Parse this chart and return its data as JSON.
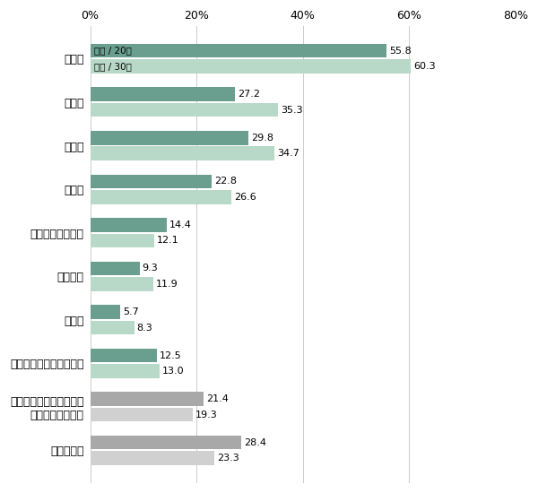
{
  "categories": [
    "忘年会",
    "送別会",
    "歓迎会",
    "新年会",
    "達成会、打ち上げ",
    "景気払い",
    "決起会",
    "その他の定期的な飲み会",
    "不定期で、これといった\n理由のない飲み会",
    "どれもない"
  ],
  "values_20": [
    55.8,
    27.2,
    29.8,
    22.8,
    14.4,
    9.3,
    5.7,
    12.5,
    21.4,
    28.4
  ],
  "values_30": [
    60.3,
    35.3,
    34.7,
    26.6,
    12.1,
    11.9,
    8.3,
    13.0,
    19.3,
    23.3
  ],
  "color_20": "#6a9e8f",
  "color_30": "#b8d8c8",
  "color_gray1": "#a8a8a8",
  "color_gray2": "#d0d0d0",
  "gray_categories": [
    8,
    9
  ],
  "legend_label_20": "男性 / 20代",
  "legend_label_30": "男性 / 30代",
  "xlim": [
    0,
    80
  ],
  "xticks": [
    0,
    20,
    40,
    60,
    80
  ],
  "xticklabels": [
    "0%",
    "20%",
    "40%",
    "60%",
    "80%"
  ],
  "bar_height": 0.32,
  "bar_gap": 0.04,
  "figwidth": 6.0,
  "figheight": 5.5
}
